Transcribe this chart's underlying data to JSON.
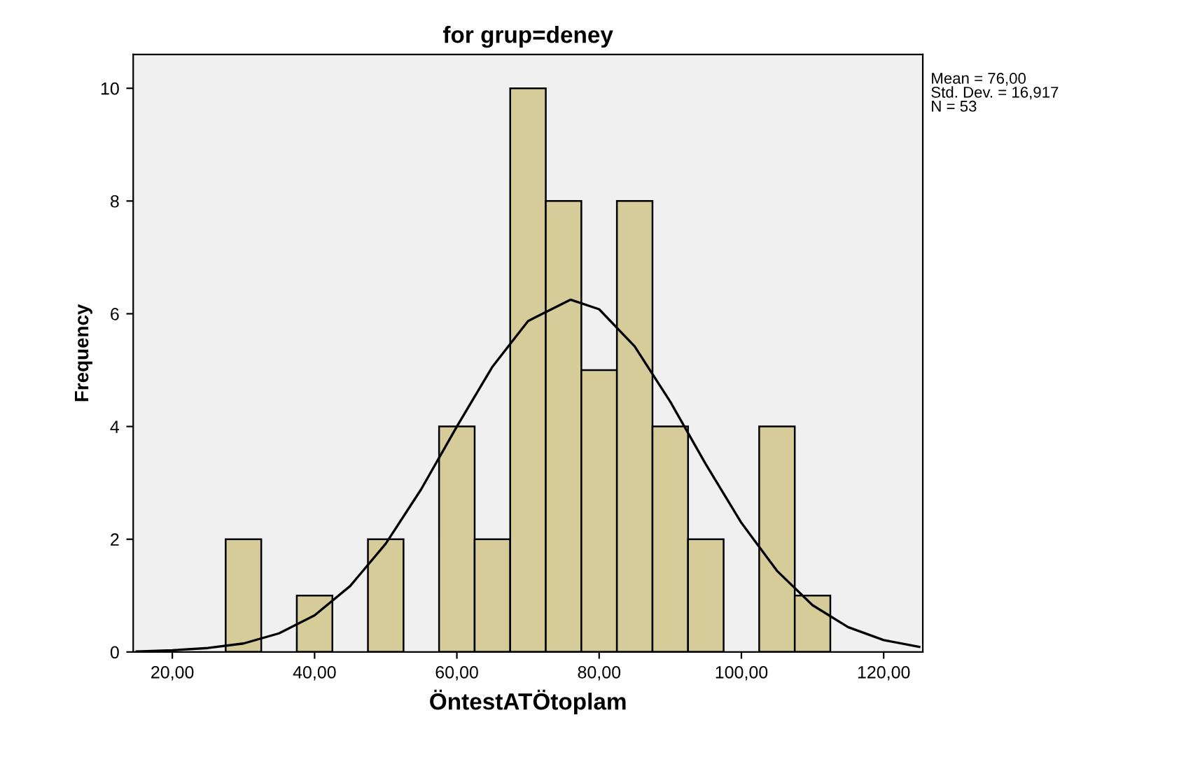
{
  "chart_data": {
    "type": "histogram",
    "title": "for grup=deney",
    "xlabel": "ÖntestATÖtoplam",
    "ylabel": "Frequency",
    "bins": [
      27.5,
      32.5,
      37.5,
      42.5,
      47.5,
      52.5,
      57.5,
      62.5,
      67.5,
      72.5,
      77.5,
      82.5,
      87.5,
      92.5,
      97.5,
      102.5,
      107.5,
      112.5
    ],
    "values": [
      2,
      0,
      1,
      0,
      2,
      0,
      4,
      2,
      10,
      8,
      5,
      8,
      4,
      2,
      0,
      4,
      1
    ],
    "color": "#d6cc99",
    "series": [
      {
        "type": "line",
        "color": "#000000",
        "x": [
          15,
          20,
          25,
          30,
          35,
          40,
          45,
          50,
          55,
          60,
          65,
          70,
          76,
          80,
          85,
          90,
          95,
          100,
          105,
          110,
          115,
          120,
          125
        ],
        "values": [
          0.01,
          0.03,
          0.07,
          0.15,
          0.33,
          0.65,
          1.17,
          1.92,
          2.89,
          4.0,
          5.06,
          5.87,
          6.25,
          6.08,
          5.42,
          4.44,
          3.33,
          2.29,
          1.44,
          0.83,
          0.44,
          0.21,
          0.09
        ]
      }
    ],
    "xlim": [
      14.5,
      125.5
    ],
    "ylim": [
      0,
      10.6
    ],
    "xticks": [
      {
        "value": 20,
        "label": "20,00"
      },
      {
        "value": 40,
        "label": "40,00"
      },
      {
        "value": 60,
        "label": "60,00"
      },
      {
        "value": 80,
        "label": "80,00"
      },
      {
        "value": 100,
        "label": "100,00"
      },
      {
        "value": 120,
        "label": "120,00"
      }
    ],
    "yticks": [
      0,
      2,
      4,
      6,
      8,
      10
    ],
    "grid": false,
    "annotations": [
      "Mean = 76,00",
      "Std. Dev. = 16,917",
      "N = 53"
    ]
  }
}
